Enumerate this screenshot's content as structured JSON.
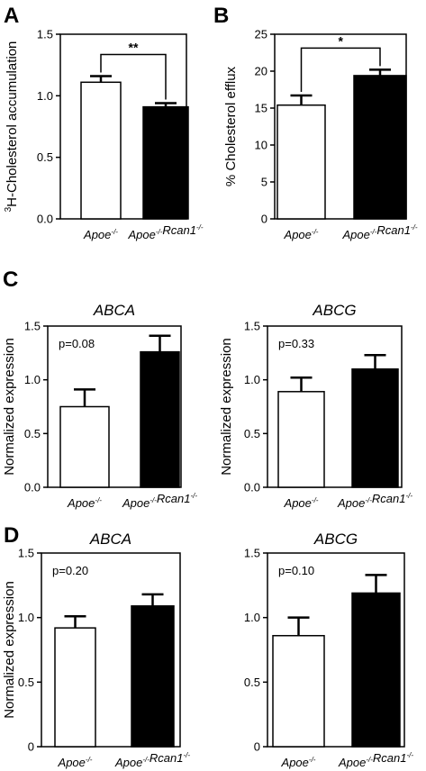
{
  "colors": {
    "apoe": "#ffffff",
    "apoe_rcan1": "#000000",
    "axis": "#000000"
  },
  "chart_data": [
    {
      "panel": "A",
      "type": "bar",
      "title": "",
      "ylabel": "3H-Cholesterol accumulation",
      "ylabel_sup": "3",
      "ylabel_rest": "H-Cholesterol accumulation",
      "ylim": [
        0,
        1.5
      ],
      "yticks": [
        "0.0",
        "0.5",
        "1.0",
        "1.5"
      ],
      "categories": [
        "Apoe-/-",
        "Apoe-/-Rcan1-/-"
      ],
      "values": [
        1.11,
        0.91
      ],
      "errors": [
        0.05,
        0.03
      ],
      "significance": "**",
      "pvalue_label": ""
    },
    {
      "panel": "B",
      "type": "bar",
      "title": "",
      "ylabel": "% Cholesterol efflux",
      "ylabel_sup": "",
      "ylabel_rest": "% Cholesterol efflux",
      "ylim": [
        0,
        25
      ],
      "yticks": [
        "0",
        "5",
        "10",
        "15",
        "20",
        "25"
      ],
      "categories": [
        "Apoe-/-",
        "Apoe-/-Rcan1-/-"
      ],
      "values": [
        15.4,
        19.4
      ],
      "errors": [
        1.3,
        0.8
      ],
      "significance": "*",
      "pvalue_label": ""
    },
    {
      "panel": "C",
      "type": "bar",
      "title": "ABCA",
      "ylabel": "Normalized expression",
      "ylabel_sup": "",
      "ylabel_rest": "Normalized expression",
      "ylim": [
        0,
        1.5
      ],
      "yticks": [
        "0.0",
        "0.5",
        "1.0",
        "1.5"
      ],
      "categories": [
        "Apoe-/-",
        "Apoe-/-Rcan1-/-"
      ],
      "values": [
        0.75,
        1.26
      ],
      "errors": [
        0.16,
        0.15
      ],
      "significance": "",
      "pvalue_label": "p=0.08"
    },
    {
      "panel": "",
      "type": "bar",
      "title": "ABCG",
      "ylabel": "Normalized expression",
      "ylabel_sup": "",
      "ylabel_rest": "Normalized expression",
      "ylim": [
        0,
        1.5
      ],
      "yticks": [
        "0.0",
        "0.5",
        "1.0",
        "1.5"
      ],
      "categories": [
        "Apoe-/-",
        "Apoe-/-Rcan1-/-"
      ],
      "values": [
        0.89,
        1.1
      ],
      "errors": [
        0.13,
        0.13
      ],
      "significance": "",
      "pvalue_label": "p=0.33"
    },
    {
      "panel": "D",
      "type": "bar",
      "title": "ABCA",
      "ylabel": "Normalized expression",
      "ylabel_sup": "",
      "ylabel_rest": "Normalized expression",
      "ylim": [
        0,
        1.5
      ],
      "yticks": [
        "0",
        "0.5",
        "1.0",
        "1.5"
      ],
      "categories": [
        "Apoe-/-",
        "Apoe-/-Rcan1-/-"
      ],
      "values": [
        0.92,
        1.09
      ],
      "errors": [
        0.09,
        0.09
      ],
      "significance": "",
      "pvalue_label": "p=0.20"
    },
    {
      "panel": "",
      "type": "bar",
      "title": "ABCG",
      "ylabel": "",
      "ylabel_sup": "",
      "ylabel_rest": "",
      "ylim": [
        0,
        1.5
      ],
      "yticks": [
        "0",
        "0.5",
        "1.0",
        "1.5"
      ],
      "categories": [
        "Apoe-/-",
        "Apoe-/-Rcan1-/-"
      ],
      "values": [
        0.86,
        1.19
      ],
      "errors": [
        0.14,
        0.14
      ],
      "significance": "",
      "pvalue_label": "p=0.10"
    }
  ]
}
